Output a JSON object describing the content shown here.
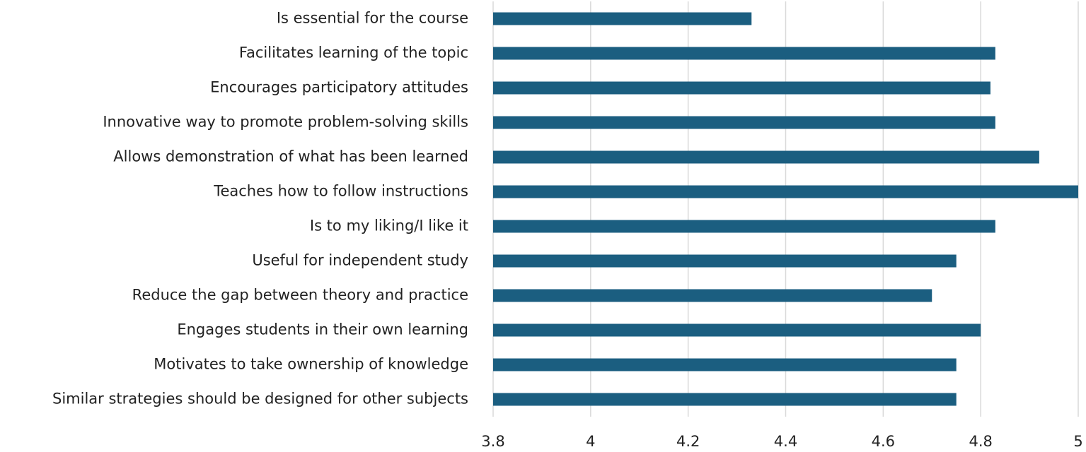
{
  "chart_data": {
    "type": "hbar",
    "categories": [
      "Is essential for the course",
      "Facilitates learning of the topic",
      "Encourages participatory attitudes",
      "Innovative way to promote problem-solving skills",
      "Allows demonstration of what has been learned",
      "Teaches how to follow instructions",
      "Is to my liking/I like it",
      "Useful for independent study",
      "Reduce the gap between theory and practice",
      "Engages students in their own learning",
      "Motivates to take ownership of knowledge",
      "Similar strategies should be designed for other subjects"
    ],
    "values": [
      4.33,
      4.83,
      4.82,
      4.83,
      4.92,
      5.0,
      4.83,
      4.75,
      4.7,
      4.8,
      4.75,
      4.75
    ],
    "color": "#1b5e80",
    "xlim": [
      3.8,
      5.0
    ],
    "xticks": [
      3.8,
      4,
      4.2,
      4.4,
      4.6,
      4.8,
      5
    ],
    "grid": true
  }
}
